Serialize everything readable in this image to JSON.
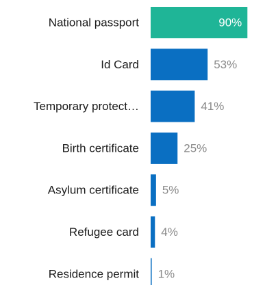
{
  "chart_data": {
    "type": "bar",
    "orientation": "horizontal",
    "categories": [
      "National passport",
      "Id Card",
      "Temporary protect…",
      "Birth certificate",
      "Asylum certificate",
      "Refugee card",
      "Residence permit"
    ],
    "values": [
      90,
      53,
      41,
      25,
      5,
      4,
      1
    ],
    "value_labels": [
      "90%",
      "53%",
      "41%",
      "25%",
      "5%",
      "4%",
      "1%"
    ],
    "unit": "%",
    "xlim": [
      0,
      100
    ],
    "grid": false,
    "legend": "none",
    "highlight_index": 0,
    "colors": {
      "highlight": "#1fb597",
      "bar": "#0a6fc2",
      "label_inside": "#ffffff",
      "label_outside": "#8a8a8a"
    }
  }
}
